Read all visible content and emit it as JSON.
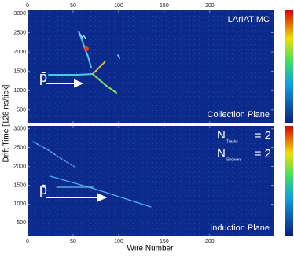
{
  "chart_data": [
    {
      "type": "heatmap",
      "ylabel": "Drift Time [128 ns/tick]",
      "annotations": [
        "LArIAT MC",
        "Collection Plane",
        "p̄"
      ],
      "xlim": [
        0,
        270
      ],
      "xticks": [
        0,
        50,
        100,
        150,
        200
      ],
      "ylim": [
        150,
        3080
      ],
      "yticks": [
        500,
        1000,
        1500,
        2000,
        2500,
        3000
      ]
    },
    {
      "type": "heatmap",
      "xlabel": "Wire Number",
      "annotations": [
        "Induction Plane",
        "p̄"
      ],
      "counts": [
        {
          "symbol": "N",
          "sub": "Tracks",
          "text": "= 2"
        },
        {
          "symbol": "N",
          "sub": "Showers",
          "text": "= 2"
        }
      ],
      "xlim": [
        0,
        270
      ],
      "xticks": [
        0,
        50,
        100,
        150,
        200
      ],
      "ylim": [
        150,
        3080
      ],
      "yticks": [
        500,
        1000,
        1500,
        2000,
        2500,
        3000
      ]
    }
  ]
}
